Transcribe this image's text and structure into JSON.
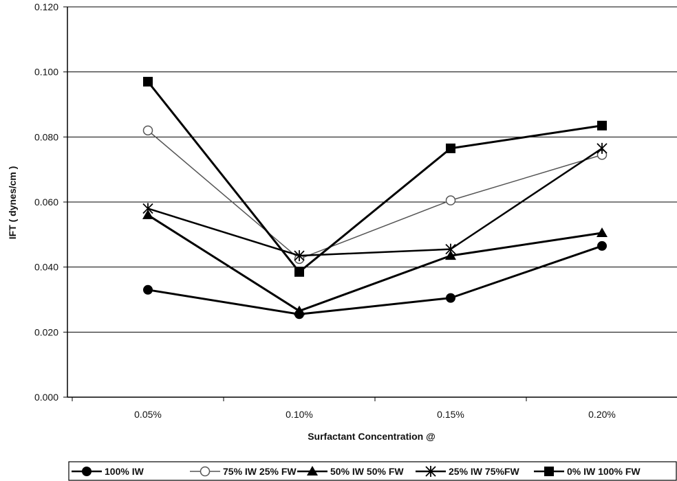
{
  "chart_data": {
    "type": "line",
    "title": "",
    "xlabel": "Surfactant Concentration @",
    "ylabel": "IFT ( dynes/cm )",
    "categories": [
      "0.05%",
      "0.10%",
      "0.15%",
      "0.20%"
    ],
    "ylim": [
      0,
      0.12
    ],
    "yticks": [
      "0.000",
      "0.020",
      "0.040",
      "0.060",
      "0.080",
      "0.100",
      "0.120"
    ],
    "grid": true,
    "legend_position": "bottom",
    "series": [
      {
        "name": "100% IW",
        "values": [
          0.033,
          0.0255,
          0.0305,
          0.0465
        ],
        "marker": "filled-circle",
        "color": "#000000",
        "line_width": 3
      },
      {
        "name": "75% IW 25% FW",
        "values": [
          0.082,
          0.0425,
          0.0605,
          0.0745
        ],
        "marker": "open-circle",
        "color": "#555555",
        "line_width": 1.5
      },
      {
        "name": "50% IW 50% FW",
        "values": [
          0.056,
          0.0265,
          0.0435,
          0.0505
        ],
        "marker": "filled-triangle",
        "color": "#000000",
        "line_width": 3
      },
      {
        "name": "25% IW 75%FW",
        "values": [
          0.058,
          0.0435,
          0.0455,
          0.0765
        ],
        "marker": "asterisk",
        "color": "#000000",
        "line_width": 2.5
      },
      {
        "name": "0% IW 100% FW",
        "values": [
          0.097,
          0.0385,
          0.0765,
          0.0835
        ],
        "marker": "filled-square",
        "color": "#000000",
        "line_width": 3
      }
    ]
  }
}
